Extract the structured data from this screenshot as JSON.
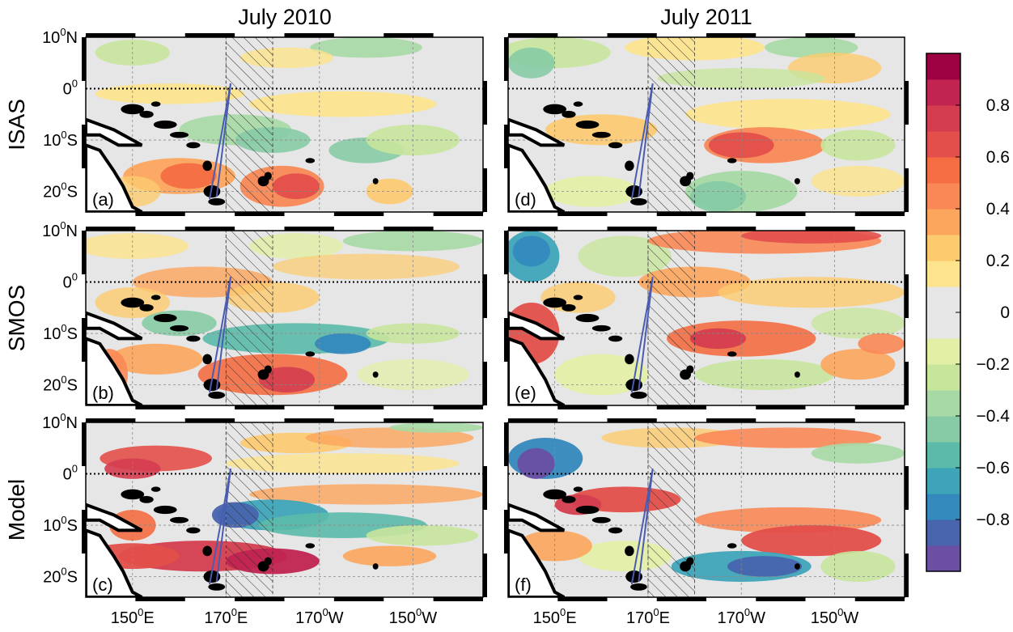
{
  "figure": {
    "column_titles": [
      "July 2010",
      "July 2011"
    ],
    "row_labels": [
      "ISAS",
      "SMOS",
      "Model"
    ],
    "panels": [
      {
        "letter": "(a)",
        "row": 0,
        "col": 0
      },
      {
        "letter": "(d)",
        "row": 0,
        "col": 1
      },
      {
        "letter": "(b)",
        "row": 1,
        "col": 0
      },
      {
        "letter": "(e)",
        "row": 1,
        "col": 1
      },
      {
        "letter": "(c)",
        "row": 2,
        "col": 0
      },
      {
        "letter": "(f)",
        "row": 2,
        "col": 1
      }
    ],
    "lat_ticks": [
      {
        "deg": "10",
        "hemi": "N",
        "value": 10
      },
      {
        "deg": "0",
        "hemi": "",
        "value": 0
      },
      {
        "deg": "10",
        "hemi": "S",
        "value": -10
      },
      {
        "deg": "20",
        "hemi": "S",
        "value": -20
      }
    ],
    "lon_ticks": [
      {
        "deg": "150",
        "hemi": "E",
        "value": 150
      },
      {
        "deg": "170",
        "hemi": "E",
        "value": 170
      },
      {
        "deg": "170",
        "hemi": "W",
        "value": 190
      },
      {
        "deg": "150",
        "hemi": "W",
        "value": 210
      }
    ],
    "degree_symbol": "0",
    "lon_range": [
      140,
      225
    ],
    "lat_range": [
      -24,
      10
    ],
    "hatched_region": {
      "lon": [
        170,
        180
      ],
      "lat": [
        -24,
        10
      ]
    }
  },
  "colorbar": {
    "levels": [
      -1.0,
      -0.9,
      -0.8,
      -0.7,
      -0.6,
      -0.5,
      -0.4,
      -0.3,
      -0.2,
      -0.1,
      0.1,
      0.2,
      0.3,
      0.4,
      0.5,
      0.6,
      0.7,
      0.8,
      0.9,
      1.0
    ],
    "colors": [
      "#6a4fa3",
      "#4864ad",
      "#3489bd",
      "#3ea5b8",
      "#5bbaa8",
      "#86cba5",
      "#a7d9a4",
      "#c8e59c",
      "#e2efa4",
      "#e6e6e6",
      "#fde38b",
      "#fdca6e",
      "#fca55d",
      "#f98856",
      "#f46d43",
      "#e34f4a",
      "#d43d4f",
      "#c12451",
      "#9e0142"
    ],
    "tick_labels": [
      {
        "value": 0.8,
        "text": "0.8"
      },
      {
        "value": 0.6,
        "text": "0.6"
      },
      {
        "value": 0.4,
        "text": "0.4"
      },
      {
        "value": 0.2,
        "text": "0.2"
      },
      {
        "value": 0.0,
        "text": "0"
      },
      {
        "value": -0.2,
        "text": "−0.2"
      },
      {
        "value": -0.4,
        "text": "−0.4"
      },
      {
        "value": -0.6,
        "text": "−0.6"
      },
      {
        "value": -0.8,
        "text": "−0.8"
      }
    ]
  }
}
